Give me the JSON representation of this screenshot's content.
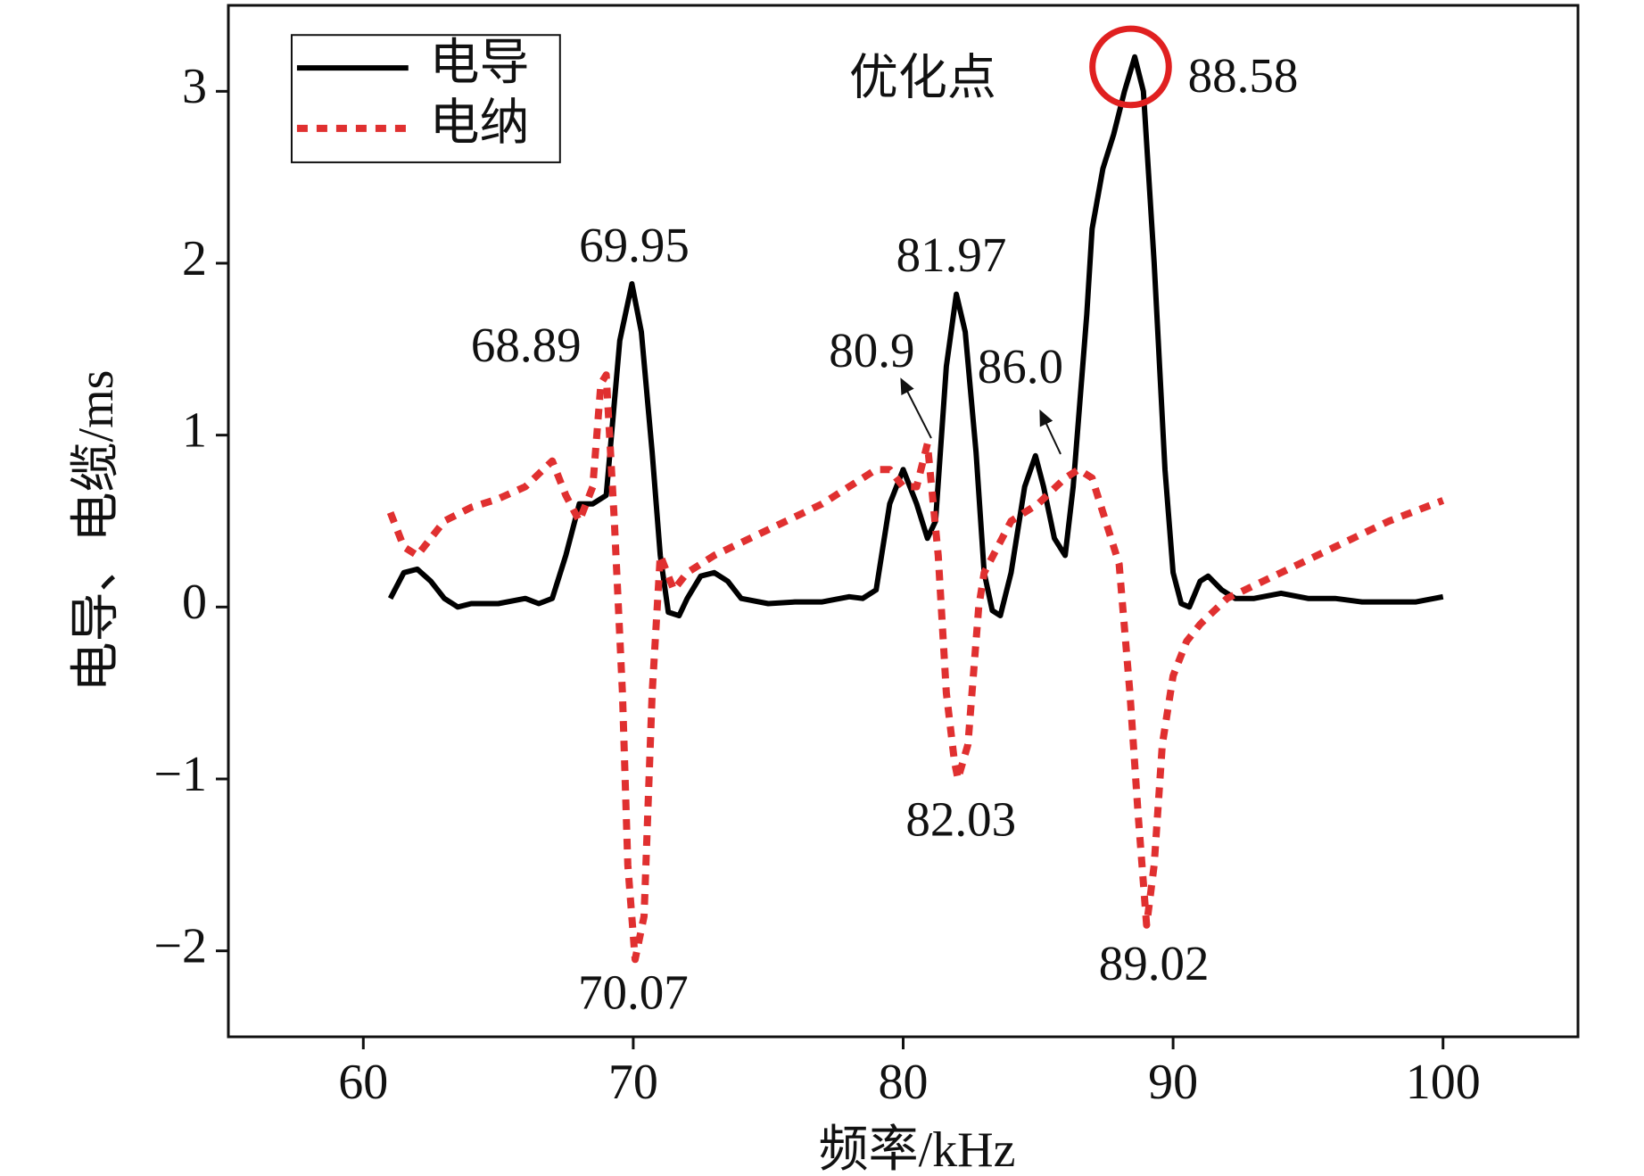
{
  "chart_data": {
    "type": "line",
    "xlabel": "频率/kHz",
    "ylabel": "电导、电缆/ms",
    "xlim": [
      55,
      105
    ],
    "xticks": [
      60,
      70,
      80,
      90,
      100
    ],
    "ylim": [
      -2.5,
      3.5
    ],
    "yticks": [
      {
        "value": -2,
        "label": "−2"
      },
      {
        "value": -1,
        "label": "−1"
      },
      0,
      1,
      2,
      3
    ],
    "legend": "upper left",
    "series": [
      {
        "name": "电导",
        "color": "#000000",
        "style": "solid",
        "x": [
          61,
          61.5,
          62,
          62.5,
          63,
          63.5,
          64,
          65,
          66,
          66.5,
          67,
          67.5,
          68,
          68.5,
          69,
          69.5,
          69.95,
          70.3,
          70.7,
          71,
          71.3,
          71.7,
          72,
          72.5,
          73,
          73.5,
          74,
          75,
          76,
          77,
          78,
          78.5,
          79,
          79.5,
          80,
          80.5,
          80.9,
          81.2,
          81.6,
          81.97,
          82.3,
          82.7,
          83,
          83.3,
          83.6,
          84,
          84.5,
          84.9,
          85.2,
          85.6,
          86,
          86.3,
          86.8,
          87,
          87.4,
          87.8,
          88.2,
          88.58,
          88.9,
          89.3,
          89.7,
          90,
          90.3,
          90.6,
          91,
          91.3,
          91.8,
          92.3,
          93,
          94,
          95,
          96,
          97,
          98,
          99,
          100
        ],
        "values": [
          0.05,
          0.2,
          0.22,
          0.15,
          0.05,
          0,
          0.02,
          0.02,
          0.05,
          0.02,
          0.05,
          0.3,
          0.6,
          0.6,
          0.65,
          1.55,
          1.88,
          1.6,
          0.9,
          0.3,
          -0.03,
          -0.05,
          0.05,
          0.18,
          0.2,
          0.15,
          0.05,
          0.02,
          0.03,
          0.03,
          0.06,
          0.05,
          0.1,
          0.6,
          0.8,
          0.6,
          0.4,
          0.5,
          1.4,
          1.82,
          1.6,
          0.9,
          0.2,
          -0.02,
          -0.05,
          0.2,
          0.7,
          0.88,
          0.7,
          0.4,
          0.3,
          0.7,
          1.7,
          2.2,
          2.55,
          2.75,
          3.0,
          3.2,
          3.0,
          2.0,
          0.8,
          0.2,
          0.02,
          0,
          0.15,
          0.18,
          0.1,
          0.05,
          0.05,
          0.08,
          0.05,
          0.05,
          0.03,
          0.03,
          0.03,
          0.06
        ]
      },
      {
        "name": "电纳",
        "color": "#e03030",
        "style": "dotted",
        "x": [
          61,
          61.5,
          62,
          63,
          64,
          65,
          66,
          67,
          67.5,
          68,
          68.5,
          68.8,
          69,
          69.3,
          69.6,
          69.8,
          70.07,
          70.4,
          70.7,
          71,
          71.5,
          72,
          73,
          75,
          77,
          79,
          79.5,
          80,
          80.5,
          80.9,
          81.3,
          81.6,
          81.9,
          82.03,
          82.4,
          82.8,
          83,
          84,
          85,
          86,
          86.5,
          87,
          87.5,
          88,
          88.4,
          88.7,
          89.02,
          89.3,
          89.6,
          90,
          90.5,
          91,
          92,
          94,
          96,
          98,
          100
        ],
        "values": [
          0.55,
          0.35,
          0.3,
          0.5,
          0.58,
          0.63,
          0.7,
          0.85,
          0.65,
          0.5,
          0.7,
          1.3,
          1.35,
          0.5,
          -0.5,
          -1.5,
          -2.05,
          -1.8,
          -0.5,
          0.3,
          0.1,
          0.2,
          0.3,
          0.45,
          0.6,
          0.8,
          0.8,
          0.7,
          0.7,
          0.95,
          0.3,
          -0.5,
          -0.9,
          -1.0,
          -0.8,
          0.0,
          0.2,
          0.5,
          0.6,
          0.75,
          0.8,
          0.75,
          0.5,
          0.25,
          -0.5,
          -1.2,
          -1.85,
          -1.5,
          -0.8,
          -0.4,
          -0.2,
          -0.1,
          0.05,
          0.2,
          0.35,
          0.5,
          0.62
        ]
      }
    ],
    "annotations": [
      "69.95",
      "68.89",
      "81.97",
      "80.9",
      "86.0",
      "88.58",
      "82.03",
      "70.07",
      "89.02",
      "优化点"
    ]
  }
}
